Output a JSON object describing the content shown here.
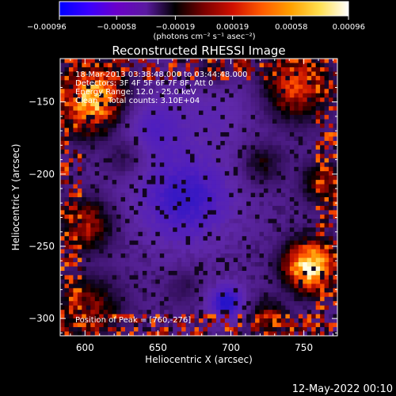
{
  "chart_data": {
    "type": "heatmap",
    "title": "Reconstructed RHESSI Image",
    "xlabel": "Heliocentric X (arcsec)",
    "ylabel": "Heliocentric Y (arcsec)",
    "xlim": [
      583,
      773
    ],
    "ylim": [
      -312,
      -120
    ],
    "xticks": [
      600,
      650,
      700,
      750
    ],
    "yticks": [
      -150,
      -200,
      -250,
      -300
    ],
    "x_tick_labels": [
      "600",
      "650",
      "700",
      "750"
    ],
    "y_tick_labels": [
      "−150",
      "−200",
      "−250",
      "−300"
    ],
    "colorbar": {
      "min": -0.00096,
      "max": 0.00096,
      "ticks": [
        -0.00096,
        -0.00058,
        -0.00019,
        0.00019,
        0.00058,
        0.00096
      ],
      "tick_labels": [
        "−0.00096",
        "−0.00058",
        "−0.00019",
        "0.00019",
        "0.00058",
        "0.00096"
      ],
      "unit_label": "(photons cm⁻² s⁻¹ asec⁻²)",
      "colors": [
        "#0000ff",
        "#3a00ff",
        "#6a00c8",
        "#5a1aa0",
        "#000000",
        "#7a0000",
        "#d01000",
        "#ff5a00",
        "#ffa000",
        "#ffe050",
        "#ffffff"
      ]
    },
    "annotations": [
      "18-Mar-2013 03:38:48.000 to 03:44:48.000",
      "Detectors: 3F 4F 5F 6F 7F 8F, Att 0",
      "Energy Range: 12.0 - 25.0 keV",
      "Clean    Total counts: 3.10E+04"
    ],
    "peak_label": "Position of Peak = [760,-276]",
    "peak": [
      760,
      -276
    ]
  },
  "footer_date": "12-May-2022 00:10"
}
